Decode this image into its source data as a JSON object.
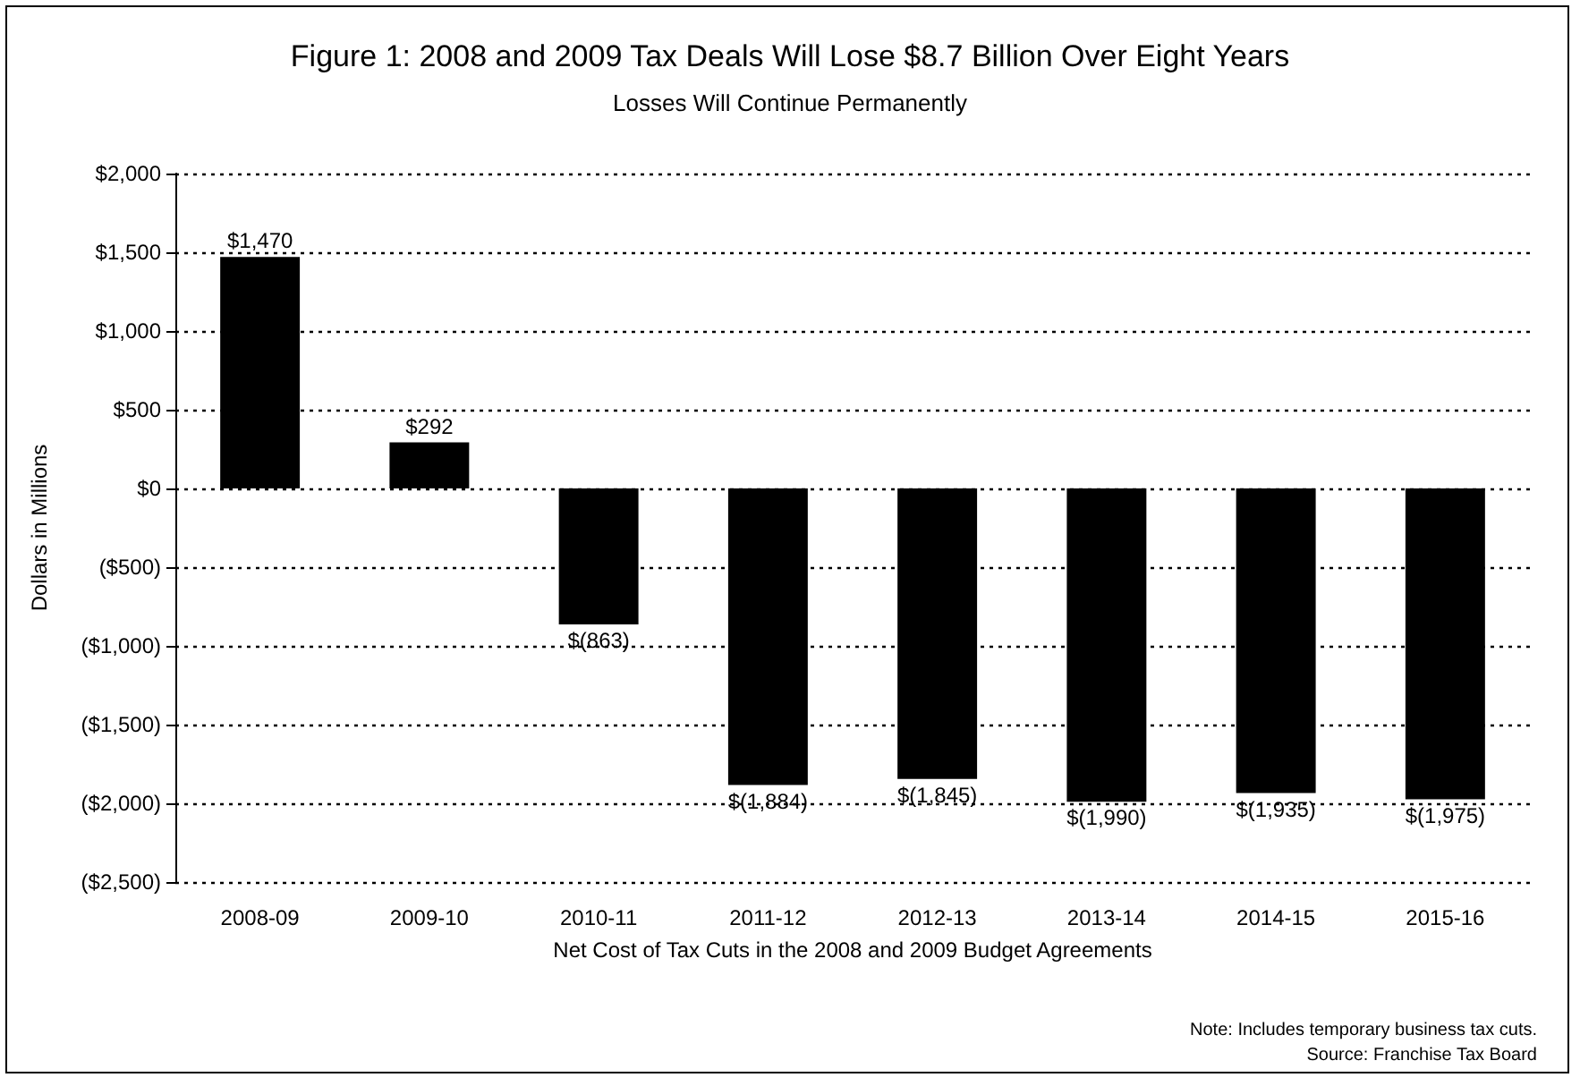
{
  "chart_data": {
    "type": "bar",
    "title": "Figure 1: 2008 and 2009 Tax Deals Will Lose $8.7 Billion Over Eight Years",
    "subtitle": "Losses Will Continue Permanently",
    "xlabel": "Net Cost of Tax Cuts in the 2008 and 2009 Budget Agreements",
    "ylabel": "Dollars in Millions",
    "categories": [
      "2008-09",
      "2009-10",
      "2010-11",
      "2011-12",
      "2012-13",
      "2013-14",
      "2014-15",
      "2015-16"
    ],
    "values": [
      1470,
      292,
      -863,
      -1884,
      -1845,
      -1990,
      -1935,
      -1975
    ],
    "value_labels": [
      "$1,470",
      "$292",
      "$(863)",
      "$(1,884)",
      "$(1,845)",
      "$(1,990)",
      "$(1,935)",
      "$(1,975)"
    ],
    "color": "#000000",
    "ylim": [
      -2500,
      2000
    ],
    "yticks": [
      {
        "value": -2500,
        "label": "($2,500)"
      },
      {
        "value": -2000,
        "label": "($2,000)"
      },
      {
        "value": -1500,
        "label": "($1,500)"
      },
      {
        "value": -1000,
        "label": "($1,000)"
      },
      {
        "value": -500,
        "label": "($500)"
      },
      {
        "value": 0,
        "label": "$0"
      },
      {
        "value": 500,
        "label": "$500"
      },
      {
        "value": 1000,
        "label": "$1,000"
      },
      {
        "value": 1500,
        "label": "$1,500"
      },
      {
        "value": 2000,
        "label": "$2,000"
      }
    ],
    "grid": "y",
    "annotations": [
      "Note: Includes temporary business tax cuts.",
      "Source: Franchise Tax Board"
    ]
  }
}
